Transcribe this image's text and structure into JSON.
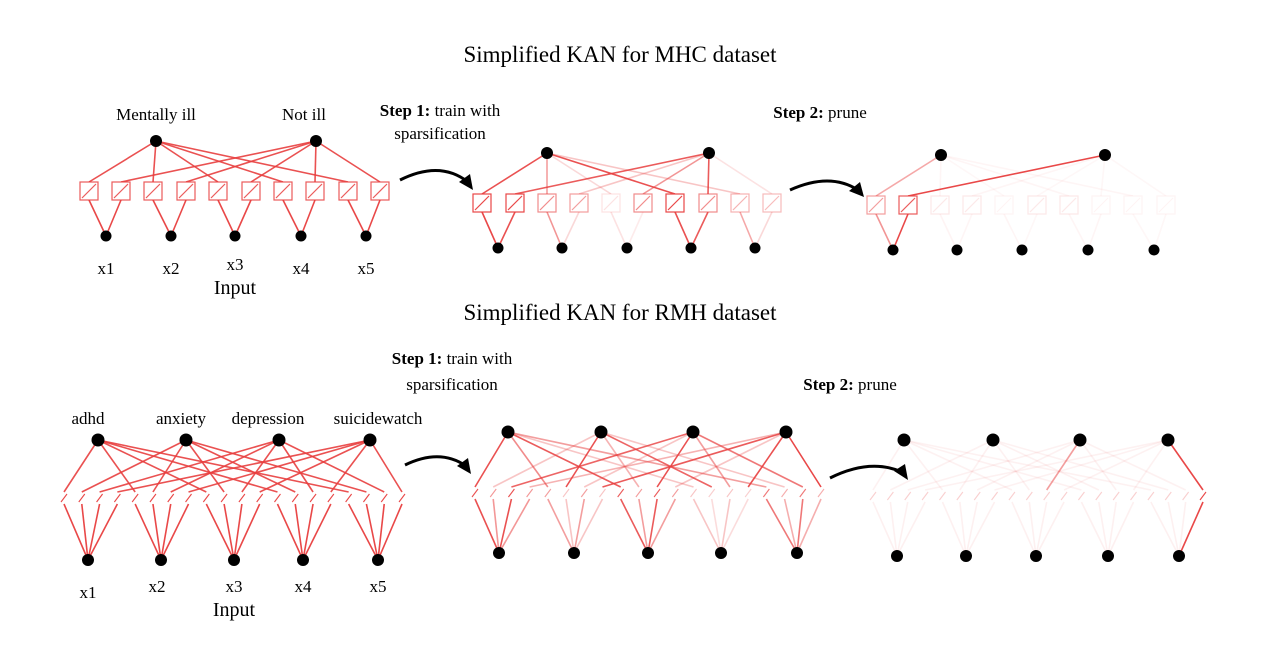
{
  "title_mhc": "Simplified KAN for MHC dataset",
  "title_rmh": "Simplified KAN for RMH dataset",
  "mhc": {
    "outputs": [
      "Mentally ill",
      "Not ill"
    ],
    "inputs": [
      "x1",
      "x2",
      "x3",
      "x4",
      "x5"
    ],
    "input_caption": "Input",
    "step1_bold": "Step 1:",
    "step1_rest": "train with",
    "step1_line2": "sparsification",
    "step2_bold": "Step 2:",
    "step2_rest": "prune"
  },
  "rmh": {
    "outputs": [
      "adhd",
      "anxiety",
      "depression",
      "suicidewatch"
    ],
    "inputs": [
      "x1",
      "x2",
      "x3",
      "x4",
      "x5"
    ],
    "input_caption": "Input",
    "step1_bold": "Step 1:",
    "step1_rest": "train with",
    "step1_line2": "sparsification",
    "step2_bold": "Step 2:",
    "step2_rest": "prune"
  },
  "colors": {
    "edge": "#e83e3e",
    "node": "#000000",
    "arrow": "#000000"
  }
}
